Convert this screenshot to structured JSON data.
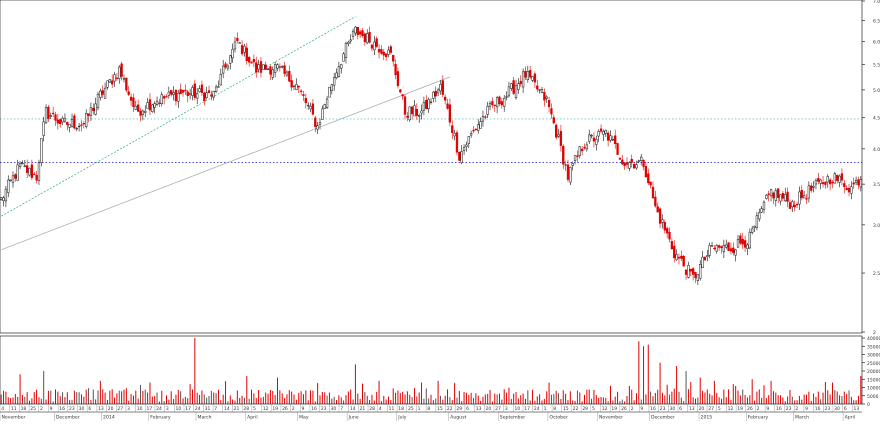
{
  "colors": {
    "up": "#111111",
    "down": "#e00000",
    "volume": "#e00000",
    "support_line": "#3333cc",
    "level_line": "#66cccc",
    "trend_upper": "#33aa77",
    "trend_lower": "#99aaaa",
    "axis": "#000000",
    "grid": "#dddddd"
  },
  "chart_data": [
    {
      "type": "candlestick",
      "scale": "log",
      "ylim": [
        2.0,
        7.0
      ],
      "y_ticks": [
        {
          "value": 7.0,
          "label": "7.0"
        },
        {
          "value": 6.5,
          "label": "6.5"
        },
        {
          "value": 6.0,
          "label": "6.0"
        },
        {
          "value": 5.5,
          "label": "5.5"
        },
        {
          "value": 5.0,
          "label": "5.0"
        },
        {
          "value": 4.5,
          "label": "4.5"
        },
        {
          "value": 4.0,
          "label": "4.0"
        },
        {
          "value": 3.5,
          "label": "3.5"
        },
        {
          "value": 3.0,
          "label": "3.0"
        },
        {
          "value": 2.5,
          "label": "2.5"
        },
        {
          "value": 2.0,
          "label": "2"
        }
      ],
      "months": [
        "November",
        "December",
        "2014",
        "February",
        "March",
        "April",
        "May",
        "June",
        "July",
        "August",
        "September",
        "October",
        "November",
        "December",
        "2015",
        "February",
        "March",
        "April"
      ],
      "month_start_day": [
        0,
        23,
        43,
        63,
        83,
        104,
        126,
        147,
        168,
        190,
        211,
        232,
        253,
        275,
        296,
        316,
        336,
        357
      ],
      "day_labels": [
        "4",
        "11",
        "18",
        "25",
        "2",
        "9",
        "16",
        "23",
        "30",
        "6",
        "13",
        "20",
        "27",
        "3",
        "10",
        "17",
        "24",
        "3",
        "10",
        "17",
        "24",
        "31",
        "7",
        "14",
        "21",
        "28",
        "5",
        "12",
        "19",
        "26",
        "2",
        "9",
        "16",
        "23",
        "30",
        "7",
        "14",
        "21",
        "28",
        "4",
        "11",
        "18",
        "25",
        "1",
        "8",
        "15",
        "22",
        "29",
        "6",
        "13",
        "20",
        "27",
        "3",
        "10",
        "17",
        "24",
        "1",
        "8",
        "15",
        "22",
        "29",
        "5",
        "12",
        "19",
        "26",
        "2",
        "9",
        "16",
        "23",
        "30",
        "6",
        "13",
        "20",
        "27",
        "5",
        "12",
        "19",
        "26",
        "2",
        "9",
        "16",
        "23",
        "2",
        "9",
        "16",
        "23",
        "30",
        "6",
        "13"
      ],
      "keypoints": [
        [
          0,
          3.3
        ],
        [
          8,
          3.75
        ],
        [
          15,
          3.6
        ],
        [
          19,
          4.6
        ],
        [
          26,
          4.4
        ],
        [
          35,
          4.4
        ],
        [
          42,
          4.9
        ],
        [
          50,
          5.4
        ],
        [
          57,
          4.6
        ],
        [
          65,
          4.8
        ],
        [
          77,
          4.95
        ],
        [
          90,
          4.9
        ],
        [
          100,
          6.0
        ],
        [
          108,
          5.4
        ],
        [
          116,
          5.45
        ],
        [
          125,
          5.1
        ],
        [
          134,
          4.35
        ],
        [
          142,
          5.4
        ],
        [
          150,
          6.25
        ],
        [
          157,
          6.0
        ],
        [
          165,
          5.7
        ],
        [
          171,
          4.6
        ],
        [
          178,
          4.6
        ],
        [
          186,
          5.05
        ],
        [
          194,
          3.9
        ],
        [
          202,
          4.4
        ],
        [
          208,
          4.7
        ],
        [
          214,
          4.9
        ],
        [
          222,
          5.3
        ],
        [
          231,
          4.8
        ],
        [
          240,
          3.6
        ],
        [
          247,
          4.1
        ],
        [
          256,
          4.25
        ],
        [
          264,
          3.8
        ],
        [
          272,
          3.8
        ],
        [
          277,
          3.2
        ],
        [
          285,
          2.7
        ],
        [
          293,
          2.45
        ],
        [
          301,
          2.75
        ],
        [
          309,
          2.75
        ],
        [
          317,
          2.85
        ],
        [
          326,
          3.4
        ],
        [
          335,
          3.25
        ],
        [
          344,
          3.45
        ],
        [
          352,
          3.6
        ],
        [
          360,
          3.45
        ],
        [
          364,
          3.6
        ]
      ],
      "reference_lines": [
        {
          "kind": "horizontal",
          "value": 3.8,
          "style": "dotted",
          "color": "#3333cc"
        },
        {
          "kind": "horizontal",
          "value": 4.48,
          "style": "dotted",
          "color": "#66cccc"
        },
        {
          "kind": "trend",
          "from": [
            0,
            3.1
          ],
          "to": [
            150,
            6.6
          ],
          "color": "#33aa77"
        },
        {
          "kind": "trend",
          "from": [
            0,
            2.73
          ],
          "to": [
            190,
            5.25
          ],
          "color": "#99aaaa"
        }
      ]
    },
    {
      "type": "bar",
      "ylim": [
        0,
        40000
      ],
      "y_ticks": [
        {
          "value": 40000,
          "label": "40000"
        },
        {
          "value": 35000,
          "label": "35000"
        },
        {
          "value": 30000,
          "label": "30000"
        },
        {
          "value": 25000,
          "label": "25000"
        },
        {
          "value": 20000,
          "label": "20000"
        },
        {
          "value": 15000,
          "label": "15000"
        },
        {
          "value": 10000,
          "label": "10000"
        },
        {
          "value": 5000,
          "label": "5000"
        },
        {
          "value": 0,
          "label": "0"
        }
      ],
      "spikes": [
        [
          8,
          18000
        ],
        [
          18,
          20000
        ],
        [
          42,
          14000
        ],
        [
          63,
          13000
        ],
        [
          80,
          12000
        ],
        [
          82,
          40000
        ],
        [
          104,
          17000
        ],
        [
          117,
          16000
        ],
        [
          150,
          24000
        ],
        [
          160,
          14000
        ],
        [
          178,
          13000
        ],
        [
          185,
          14000
        ],
        [
          232,
          13000
        ],
        [
          270,
          38000
        ],
        [
          272,
          35000
        ],
        [
          274,
          36000
        ],
        [
          279,
          25000
        ],
        [
          286,
          23000
        ],
        [
          290,
          20000
        ],
        [
          296,
          16000
        ],
        [
          302,
          14000
        ],
        [
          318,
          15000
        ],
        [
          326,
          14000
        ],
        [
          352,
          13000
        ],
        [
          364,
          17000
        ]
      ]
    }
  ]
}
